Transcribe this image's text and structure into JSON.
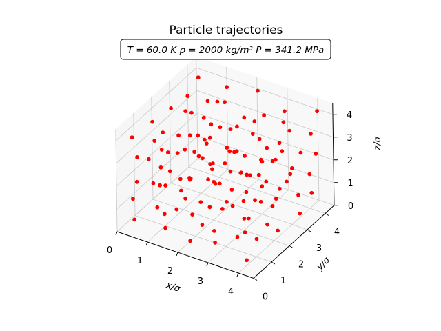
{
  "chart_data": {
    "type": "scatter3d",
    "title": "Particle trajectories",
    "annotation": "T = 60.0 K    ρ = 2000 kg/m³    P = 341.2 MPa",
    "xlabel": "x/σ",
    "ylabel": "y/σ",
    "zlabel": "z/σ",
    "xlim": [
      0,
      4.5
    ],
    "ylim": [
      0,
      4.5
    ],
    "zlim": [
      0,
      4.5
    ],
    "xticks": [
      "0",
      "1",
      "2",
      "3",
      "4"
    ],
    "yticks": [
      "0",
      "1",
      "2",
      "3",
      "4"
    ],
    "zticks": [
      "0",
      "1",
      "2",
      "3",
      "4"
    ],
    "grid": true,
    "marker_color": "#ff0000",
    "points": [
      [
        0.4,
        0.3,
        0.5
      ],
      [
        0.5,
        1.4,
        0.3
      ],
      [
        0.3,
        2.2,
        0.6
      ],
      [
        0.6,
        3.1,
        0.4
      ],
      [
        0.4,
        4.1,
        0.5
      ],
      [
        1.3,
        0.5,
        0.4
      ],
      [
        1.2,
        1.3,
        0.6
      ],
      [
        1.4,
        2.3,
        0.3
      ],
      [
        1.3,
        3.2,
        0.5
      ],
      [
        1.2,
        4.0,
        0.7
      ],
      [
        2.3,
        0.2,
        0.5
      ],
      [
        2.1,
        1.2,
        0.4
      ],
      [
        2.2,
        2.4,
        0.6
      ],
      [
        2.4,
        3.0,
        0.3
      ],
      [
        2.2,
        4.2,
        0.5
      ],
      [
        3.0,
        0.4,
        0.6
      ],
      [
        3.2,
        1.3,
        0.3
      ],
      [
        3.1,
        2.1,
        0.5
      ],
      [
        3.3,
        3.3,
        0.6
      ],
      [
        3.0,
        4.0,
        0.4
      ],
      [
        4.1,
        0.3,
        0.4
      ],
      [
        3.9,
        1.2,
        0.6
      ],
      [
        4.0,
        2.2,
        0.3
      ],
      [
        4.2,
        3.1,
        0.5
      ],
      [
        4.0,
        4.1,
        0.6
      ],
      [
        0.3,
        0.4,
        1.3
      ],
      [
        0.5,
        1.2,
        1.5
      ],
      [
        0.4,
        2.3,
        1.2
      ],
      [
        0.3,
        3.3,
        1.4
      ],
      [
        0.6,
        4.0,
        1.3
      ],
      [
        1.4,
        0.3,
        1.2
      ],
      [
        1.3,
        1.4,
        1.4
      ],
      [
        1.1,
        2.2,
        1.3
      ],
      [
        1.4,
        3.0,
        1.5
      ],
      [
        1.3,
        4.1,
        1.2
      ],
      [
        2.2,
        0.5,
        1.4
      ],
      [
        2.3,
        1.3,
        1.2
      ],
      [
        2.1,
        2.2,
        1.5
      ],
      [
        2.2,
        3.2,
        1.3
      ],
      [
        2.4,
        4.0,
        1.4
      ],
      [
        3.1,
        0.2,
        1.3
      ],
      [
        3.0,
        1.4,
        1.5
      ],
      [
        3.2,
        2.3,
        1.2
      ],
      [
        3.1,
        3.1,
        1.4
      ],
      [
        3.3,
        4.2,
        1.3
      ],
      [
        4.0,
        0.4,
        1.5
      ],
      [
        4.2,
        1.3,
        1.3
      ],
      [
        3.9,
        2.1,
        1.4
      ],
      [
        4.1,
        3.2,
        1.2
      ],
      [
        4.0,
        4.0,
        1.5
      ],
      [
        0.5,
        0.3,
        2.2
      ],
      [
        0.3,
        1.3,
        2.4
      ],
      [
        0.4,
        2.2,
        2.1
      ],
      [
        0.6,
        3.1,
        2.3
      ],
      [
        0.4,
        4.2,
        2.2
      ],
      [
        1.2,
        0.4,
        2.3
      ],
      [
        1.4,
        1.2,
        2.1
      ],
      [
        1.3,
        2.4,
        2.2
      ],
      [
        1.2,
        3.2,
        2.4
      ],
      [
        1.4,
        4.0,
        2.3
      ],
      [
        2.1,
        0.3,
        2.2
      ],
      [
        2.2,
        1.4,
        2.3
      ],
      [
        2.4,
        2.3,
        2.1
      ],
      [
        2.2,
        3.0,
        2.4
      ],
      [
        2.3,
        4.1,
        2.2
      ],
      [
        3.2,
        0.5,
        2.1
      ],
      [
        3.1,
        1.2,
        2.4
      ],
      [
        3.0,
        2.2,
        2.3
      ],
      [
        3.2,
        3.3,
        2.2
      ],
      [
        3.1,
        4.0,
        2.1
      ],
      [
        4.1,
        0.2,
        2.3
      ],
      [
        4.0,
        1.3,
        2.2
      ],
      [
        4.2,
        2.4,
        2.4
      ],
      [
        3.9,
        3.1,
        2.1
      ],
      [
        4.1,
        4.2,
        2.3
      ],
      [
        0.4,
        0.5,
        3.1
      ],
      [
        0.5,
        1.3,
        3.3
      ],
      [
        0.3,
        2.1,
        3.0
      ],
      [
        0.4,
        3.2,
        3.2
      ],
      [
        0.6,
        4.1,
        3.1
      ],
      [
        1.3,
        0.3,
        3.2
      ],
      [
        1.2,
        1.4,
        3.0
      ],
      [
        1.4,
        2.2,
        3.3
      ],
      [
        1.3,
        3.1,
        3.1
      ],
      [
        1.1,
        4.2,
        3.2
      ],
      [
        2.2,
        0.4,
        3.0
      ],
      [
        2.4,
        1.2,
        3.2
      ],
      [
        2.3,
        2.3,
        3.1
      ],
      [
        2.1,
        3.2,
        3.3
      ],
      [
        2.2,
        4.0,
        3.0
      ],
      [
        3.1,
        0.3,
        3.3
      ],
      [
        3.3,
        1.4,
        3.1
      ],
      [
        3.0,
        2.1,
        3.2
      ],
      [
        3.2,
        3.0,
        3.0
      ],
      [
        3.1,
        4.1,
        3.3
      ],
      [
        4.0,
        0.5,
        3.2
      ],
      [
        4.1,
        1.2,
        3.0
      ],
      [
        3.9,
        2.3,
        3.3
      ],
      [
        4.2,
        3.2,
        3.1
      ],
      [
        4.0,
        4.1,
        3.2
      ],
      [
        0.3,
        0.4,
        4.0
      ],
      [
        0.5,
        1.2,
        4.2
      ],
      [
        0.4,
        2.4,
        3.9
      ],
      [
        0.6,
        3.0,
        4.1
      ],
      [
        0.3,
        4.1,
        4.0
      ],
      [
        1.4,
        0.2,
        4.1
      ],
      [
        1.3,
        1.3,
        3.9
      ],
      [
        1.2,
        2.2,
        4.2
      ],
      [
        1.4,
        3.3,
        4.0
      ],
      [
        1.3,
        4.0,
        4.1
      ],
      [
        2.3,
        0.5,
        4.2
      ],
      [
        2.1,
        1.4,
        4.0
      ],
      [
        2.2,
        2.1,
        4.1
      ],
      [
        2.4,
        3.1,
        3.9
      ],
      [
        2.2,
        4.2,
        4.2
      ],
      [
        3.0,
        0.3,
        3.9
      ],
      [
        3.2,
        1.2,
        4.1
      ],
      [
        3.1,
        2.4,
        4.0
      ],
      [
        3.0,
        3.2,
        4.2
      ],
      [
        3.2,
        4.0,
        3.9
      ],
      [
        4.2,
        0.4,
        4.1
      ],
      [
        4.0,
        1.4,
        3.9
      ],
      [
        4.1,
        2.2,
        4.2
      ],
      [
        3.9,
        3.1,
        4.0
      ],
      [
        4.1,
        4.3,
        4.1
      ]
    ]
  }
}
